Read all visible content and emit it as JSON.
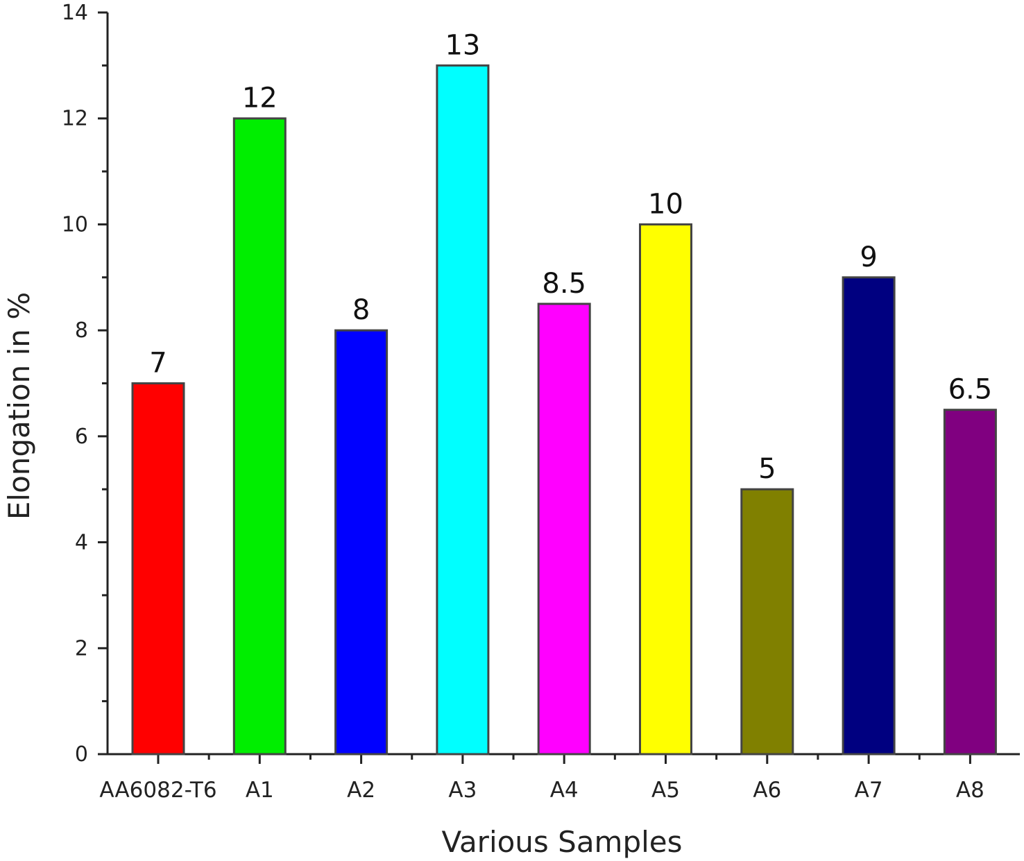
{
  "chart_data": {
    "type": "bar",
    "title": "",
    "xlabel": "Various Samples",
    "ylabel": "Elongation in %",
    "categories": [
      "AA6082-T6",
      "A1",
      "A2",
      "A3",
      "A4",
      "A5",
      "A6",
      "A7",
      "A8"
    ],
    "values": [
      7,
      12,
      8,
      13,
      8.5,
      10,
      5,
      9,
      6.5
    ],
    "value_labels": [
      "7",
      "12",
      "8",
      "13",
      "8.5",
      "10",
      "5",
      "9",
      "6.5"
    ],
    "colors": [
      "#ff0000",
      "#00ee00",
      "#0000ff",
      "#00ffff",
      "#ff00ff",
      "#ffff00",
      "#808000",
      "#000080",
      "#800080"
    ],
    "ylim": [
      0,
      14
    ],
    "yticks": [
      0,
      2,
      4,
      6,
      8,
      10,
      12,
      14
    ],
    "grid": false,
    "legend": "none"
  }
}
